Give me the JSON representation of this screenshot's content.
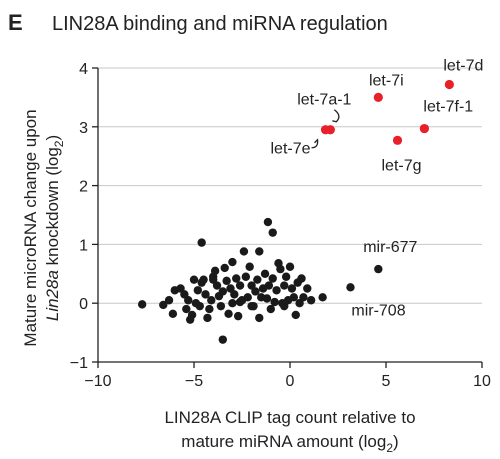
{
  "panel_label": "E",
  "chart_data": {
    "type": "scatter",
    "title": "LIN28A binding and miRNA regulation",
    "xlabel_line1": "LIN28A CLIP tag count relative to",
    "xlabel_line2": "mature miRNA amount (log",
    "xlabel_sub": "2",
    "xlabel_close": ")",
    "ylabel_line1": "Mature microRNA change upon",
    "ylabel_line2_italic": "Lin28a",
    "ylabel_line2_rest": " knockdown (log",
    "ylabel_sub": "2",
    "ylabel_close": ")",
    "xlim": [
      -10,
      10
    ],
    "ylim": [
      -1,
      4
    ],
    "xticks": [
      -10,
      -5,
      0,
      5,
      10
    ],
    "xtick_labels": [
      "−10",
      "−5",
      "0",
      "5",
      "10"
    ],
    "yticks": [
      -1,
      0,
      1,
      2,
      3,
      4
    ],
    "ytick_labels": [
      "−1",
      "0",
      "1",
      "2",
      "3",
      "4"
    ],
    "grid": "horizontal",
    "colors": {
      "highlight": "#e8202a",
      "default": "#1a1a1a"
    },
    "highlighted": [
      {
        "label": "let-7d",
        "x": 8.3,
        "y": 3.72
      },
      {
        "label": "let-7i",
        "x": 4.6,
        "y": 3.5
      },
      {
        "label": "let-7a-1",
        "x": 2.1,
        "y": 2.95
      },
      {
        "label": "let-7e",
        "x": 1.85,
        "y": 2.95
      },
      {
        "label": "let-7f-1",
        "x": 7.0,
        "y": 2.97
      },
      {
        "label": "let-7g",
        "x": 5.6,
        "y": 2.77
      }
    ],
    "labeled_black": [
      {
        "label": "mir-677",
        "x": 4.6,
        "y": 0.58
      },
      {
        "label": "mir-708",
        "x": 3.15,
        "y": 0.27
      }
    ],
    "points": [
      [
        -7.7,
        -0.02
      ],
      [
        -6.6,
        -0.03
      ],
      [
        -6.3,
        0.05
      ],
      [
        -6.1,
        -0.18
      ],
      [
        -6.0,
        0.22
      ],
      [
        -5.7,
        0.25
      ],
      [
        -5.5,
        0.15
      ],
      [
        -5.4,
        -0.1
      ],
      [
        -5.3,
        0.05
      ],
      [
        -5.2,
        -0.28
      ],
      [
        -5.1,
        -0.2
      ],
      [
        -5.0,
        0.4
      ],
      [
        -4.9,
        0.0
      ],
      [
        -4.8,
        0.22
      ],
      [
        -4.7,
        -0.05
      ],
      [
        -4.6,
        0.35
      ],
      [
        -4.5,
        0.4
      ],
      [
        -4.4,
        0.15
      ],
      [
        -4.3,
        -0.25
      ],
      [
        -4.2,
        -0.1
      ],
      [
        -4.1,
        0.05
      ],
      [
        -4.0,
        0.45
      ],
      [
        -3.9,
        0.55
      ],
      [
        -3.8,
        0.3
      ],
      [
        -3.7,
        0.12
      ],
      [
        -3.6,
        -0.05
      ],
      [
        -3.5,
        0.2
      ],
      [
        -3.4,
        0.6
      ],
      [
        -3.3,
        0.38
      ],
      [
        -3.2,
        -0.18
      ],
      [
        -3.1,
        0.25
      ],
      [
        -3.0,
        0.0
      ],
      [
        -2.9,
        0.15
      ],
      [
        -2.8,
        0.42
      ],
      [
        -2.7,
        -0.22
      ],
      [
        -2.6,
        0.3
      ],
      [
        -2.5,
        0.05
      ],
      [
        -2.4,
        0.88
      ],
      [
        -2.3,
        0.45
      ],
      [
        -2.2,
        0.1
      ],
      [
        -2.1,
        0.62
      ],
      [
        -2.0,
        0.3
      ],
      [
        -1.9,
        -0.05
      ],
      [
        -1.8,
        0.2
      ],
      [
        -1.7,
        0.4
      ],
      [
        -1.6,
        -0.25
      ],
      [
        -1.5,
        0.1
      ],
      [
        -1.4,
        0.25
      ],
      [
        -1.3,
        0.5
      ],
      [
        -1.2,
        0.08
      ],
      [
        -1.1,
        0.3
      ],
      [
        -1.0,
        -0.1
      ],
      [
        -0.9,
        0.42
      ],
      [
        -0.8,
        0.02
      ],
      [
        -0.7,
        0.22
      ],
      [
        -0.6,
        0.68
      ],
      [
        -0.5,
        0.58
      ],
      [
        -0.4,
        0.0
      ],
      [
        -0.3,
        0.3
      ],
      [
        -0.2,
        0.45
      ],
      [
        -0.1,
        0.05
      ],
      [
        0.0,
        0.62
      ],
      [
        0.1,
        0.25
      ],
      [
        0.2,
        0.1
      ],
      [
        0.3,
        -0.2
      ],
      [
        0.4,
        0.35
      ],
      [
        0.5,
        0.0
      ],
      [
        0.6,
        0.42
      ],
      [
        0.7,
        0.1
      ],
      [
        0.9,
        0.25
      ],
      [
        1.1,
        0.05
      ],
      [
        1.7,
        0.1
      ],
      [
        -4.6,
        1.03
      ],
      [
        -3.5,
        -0.62
      ],
      [
        -2.0,
        -0.05
      ],
      [
        -1.6,
        0.88
      ],
      [
        -2.6,
        0.02
      ],
      [
        -1.15,
        1.38
      ],
      [
        -0.9,
        1.2
      ],
      [
        -3.0,
        0.7
      ],
      [
        -4.0,
        0.4
      ],
      [
        -0.3,
        -0.05
      ]
    ]
  }
}
